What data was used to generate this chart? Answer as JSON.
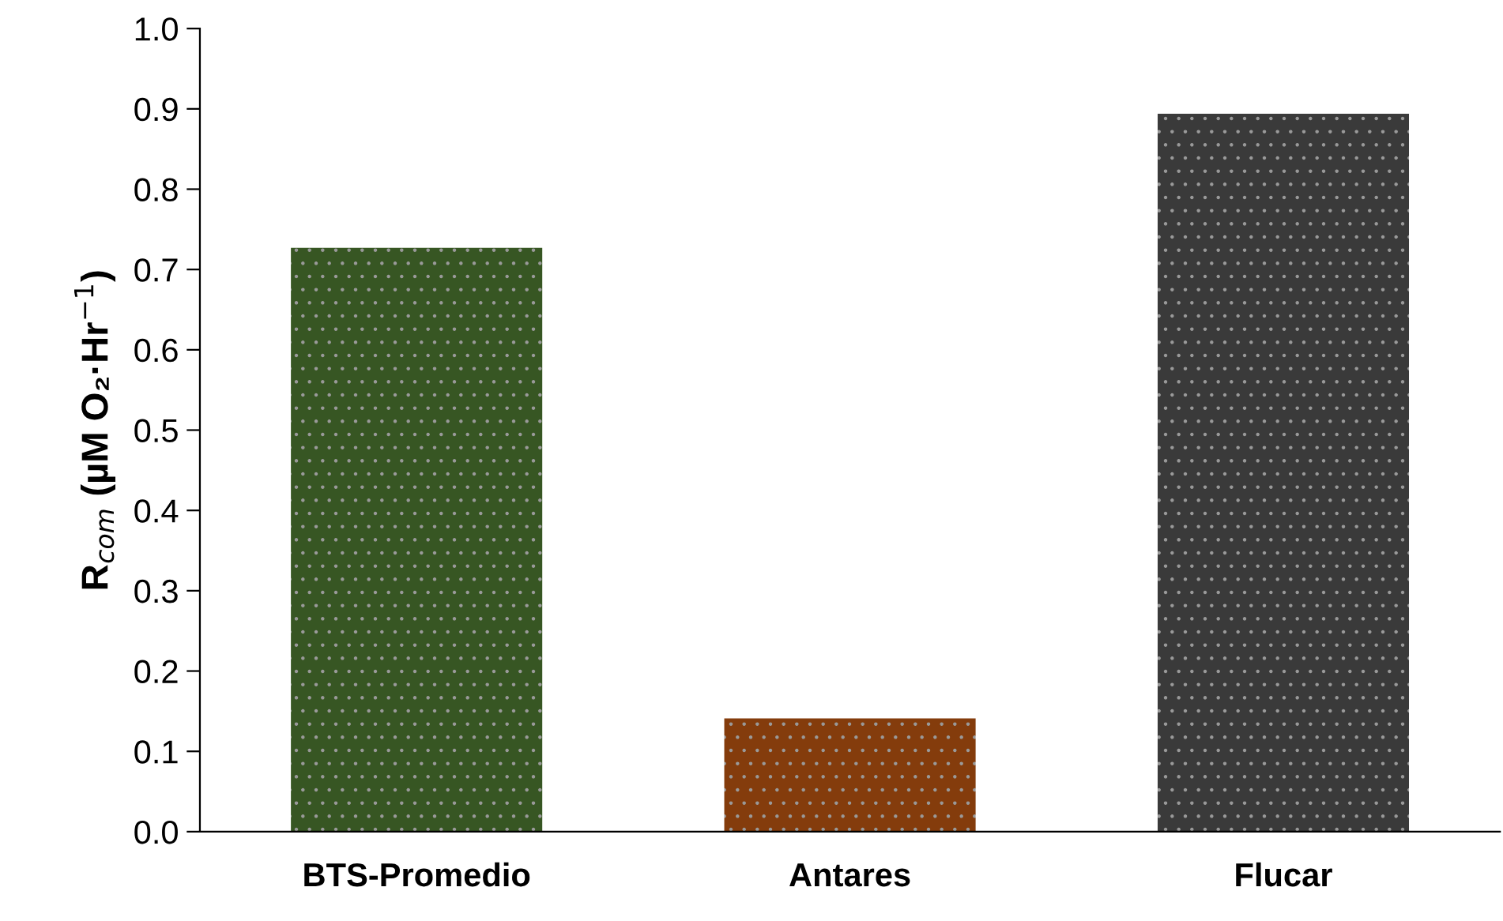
{
  "chart_data": {
    "type": "bar",
    "ylabel": "R$_{com}$ (µM O₂·Hr$^{−1}$)",
    "categories": [
      "BTS-Promedio",
      "Antares",
      "Flucar"
    ],
    "values": [
      0.727,
      0.141,
      0.894
    ],
    "colors": [
      "#375623",
      "#843c0c",
      "#3a3a3a"
    ],
    "ylim": [
      0,
      1.0
    ],
    "yticks": [
      {
        "value": 0,
        "label": "0.0"
      },
      0.1,
      0.2,
      0.3,
      0.4,
      0.5,
      0.6,
      0.7,
      0.8,
      0.9,
      {
        "value": 1.0,
        "label": "1.0"
      }
    ],
    "grid": false
  }
}
